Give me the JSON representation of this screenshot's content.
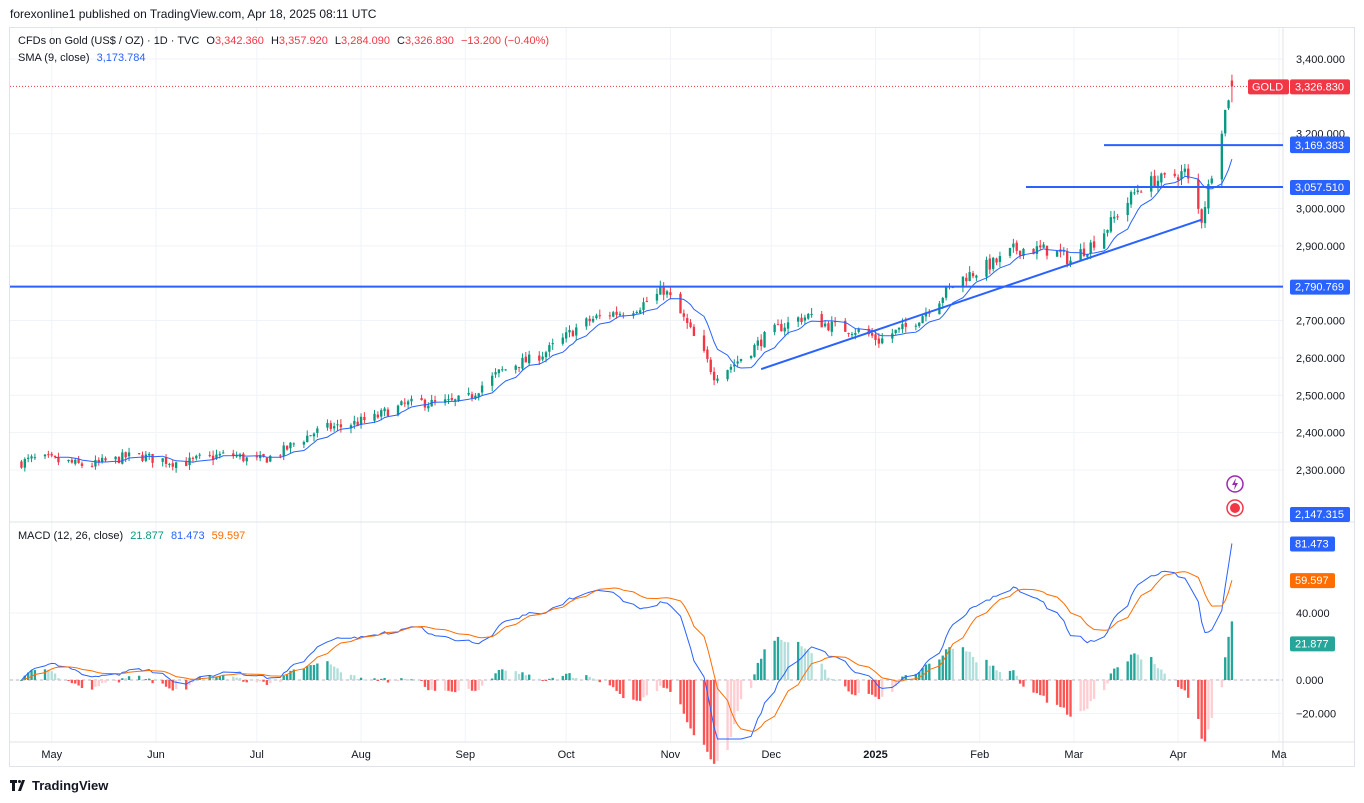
{
  "header": {
    "published": "forexonline1 published on TradingView.com, Apr 18, 2025 08:11 UTC"
  },
  "legend": {
    "symbol": "CFDs on Gold (US$ / OZ) · 1D · TVC",
    "open_label": "O",
    "open": "3,342.360",
    "high_label": "H",
    "high": "3,357.920",
    "low_label": "L",
    "low": "3,284.090",
    "close_label": "C",
    "close": "3,326.830",
    "change": "−13.200 (−0.40%)",
    "sma_label": "SMA (9, close)",
    "sma_value": "3,173.784",
    "macd_label": "MACD (12, 26, close)",
    "macd_hist": "21.877",
    "macd_line": "81.473",
    "macd_signal": "59.597"
  },
  "colors": {
    "up": "#089981",
    "down": "#f23645",
    "sma": "#2962ff",
    "macd": "#2962ff",
    "signal": "#ff6d00",
    "hline": "#2962ff"
  },
  "footer": {
    "brand": "TradingView",
    "icon": "tradingview-logo-icon"
  },
  "chart_data": [
    {
      "type": "candlestick",
      "title": "CFDs on Gold (US$ / OZ) · 1D · TVC",
      "x_tick_labels": [
        "May",
        "Jun",
        "Jul",
        "Aug",
        "Sep",
        "Oct",
        "Nov",
        "Dec",
        "2025",
        "Feb",
        "Mar",
        "Apr",
        "Ma"
      ],
      "y_tick_labels": [
        "3,400.000",
        "3,200.000",
        "3,000.000",
        "2,900.000",
        "2,700.000",
        "2,600.000",
        "2,500.000",
        "2,400.000",
        "2,300.000"
      ],
      "ylim": [
        2150,
        3430
      ],
      "series": [
        {
          "name": "Price",
          "x": [
            "2024-05-01",
            "2024-06-03",
            "2024-07-01",
            "2024-08-01",
            "2024-09-02",
            "2024-10-01",
            "2024-10-30",
            "2024-11-14",
            "2024-12-12",
            "2025-01-02",
            "2025-02-11",
            "2025-02-28",
            "2025-03-20",
            "2025-04-03",
            "2025-04-08",
            "2025-04-17"
          ],
          "values": [
            2320,
            2330,
            2330,
            2440,
            2500,
            2660,
            2780,
            2560,
            2720,
            2640,
            2900,
            2860,
            3040,
            3110,
            2980,
            3326.83
          ]
        }
      ],
      "sma": {
        "name": "SMA (9, close)",
        "last": 3173.784
      },
      "price_labels": {
        "GOLD": "3,326.830",
        "sma": "3,173.784",
        "level_1": "3,169.383",
        "level_2": "3,057.510",
        "level_3": "2,790.769",
        "bottom": "2,147.315"
      },
      "symbol_tag": "GOLD",
      "horizontal_levels": [
        3169.383,
        3057.51,
        2790.769
      ],
      "trendline": {
        "from": [
          "2024-11-28",
          2570
        ],
        "to": [
          "2025-04-08",
          2970
        ]
      }
    },
    {
      "type": "line",
      "title": "MACD (12, 26, close)",
      "y_tick_labels": [
        "40.000",
        "0.000",
        "−20.000"
      ],
      "ylim": [
        -40,
        110
      ],
      "series": [
        {
          "name": "MACD",
          "last": 81.473
        },
        {
          "name": "Signal",
          "last": 59.597
        },
        {
          "name": "Histogram",
          "last": 21.877
        }
      ],
      "price_labels": {
        "macd": "81.473",
        "signal": "59.597",
        "hist": "21.877"
      }
    }
  ]
}
